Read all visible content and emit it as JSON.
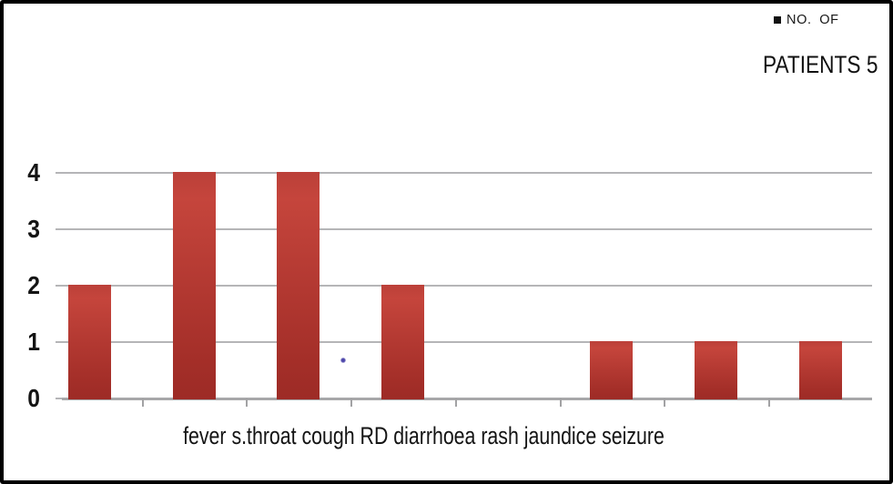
{
  "chart_data": {
    "type": "bar",
    "title": "",
    "categories": [
      "fever",
      "s.throat",
      "cough",
      "RD",
      "diarrhoea",
      "rash",
      "jaundice",
      "seizure"
    ],
    "values": [
      2,
      4,
      4,
      2,
      0,
      1,
      1,
      1
    ],
    "series": [
      {
        "name": "NO. OF PATIENTS 5",
        "values": [
          2,
          4,
          4,
          2,
          0,
          1,
          1,
          1
        ]
      }
    ],
    "xlabel": "",
    "ylabel": "",
    "xlabel_line": "fever s.throat cough RD diarrhoea rash jaundice seizure",
    "ylim": [
      0,
      4
    ],
    "yticks": [
      0,
      1,
      2,
      3,
      4
    ],
    "grid": true,
    "legend_position": "top-right",
    "bar_color": "#b03830"
  },
  "legend": {
    "marker": "square",
    "line1": "NO. OF",
    "line2": "PATIENTS 5"
  },
  "colors": {
    "bar_top": "#c5453c",
    "bar_bottom": "#9d2b26",
    "gridline": "#b5b5b7",
    "axis_line": "#a7a7a9",
    "text": "#141414",
    "frame_border": "#000000",
    "artifact_dot": "#443ca6"
  }
}
